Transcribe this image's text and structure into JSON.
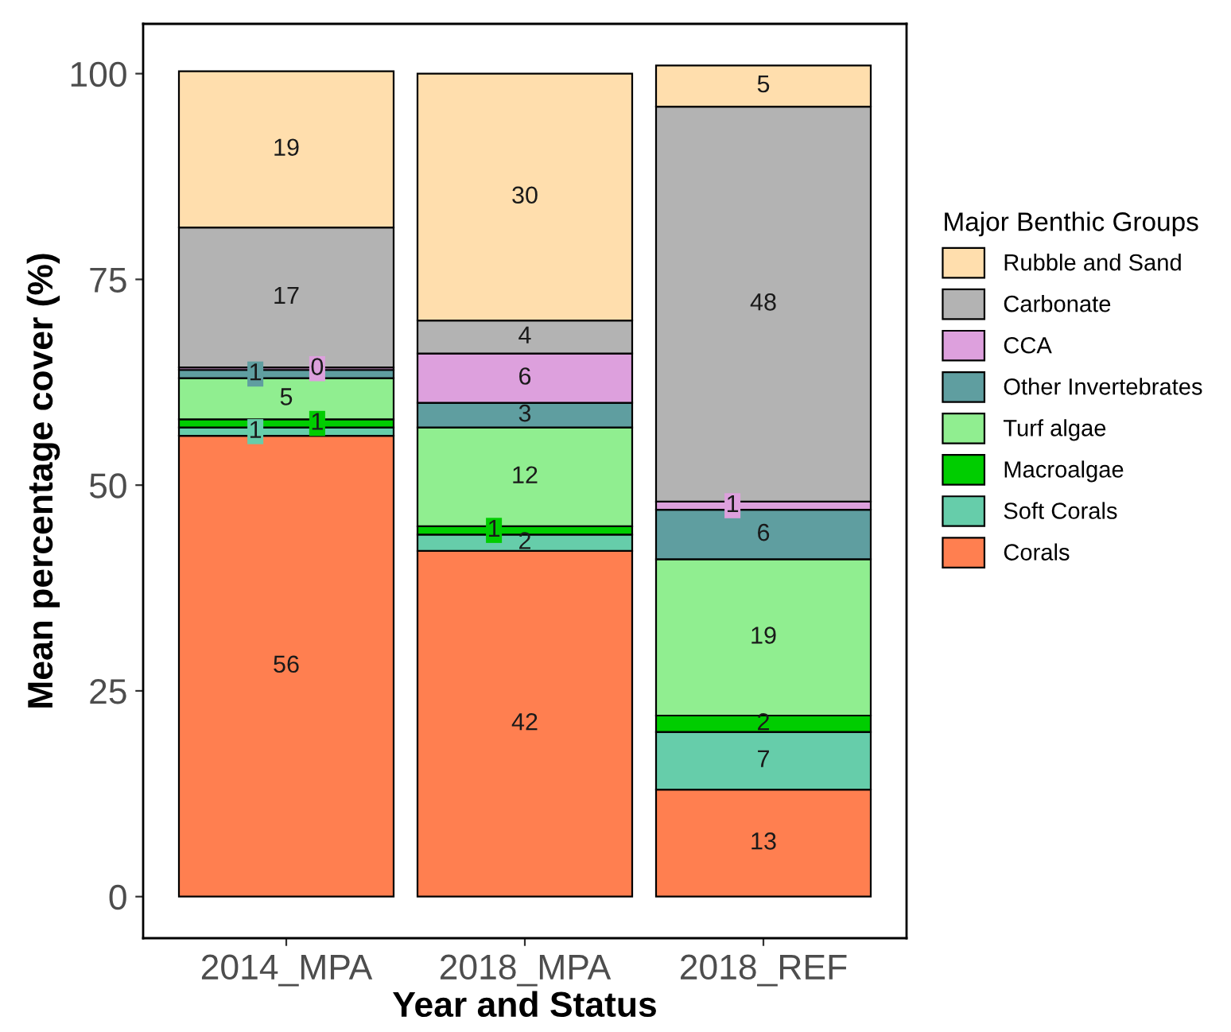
{
  "chart_data": {
    "type": "bar",
    "stacked": true,
    "xlabel": "Year and Status",
    "ylabel": "Mean percentage cover (%)",
    "legend_title": "Major Benthic Groups",
    "categories": [
      "2014_MPA",
      "2018_MPA",
      "2018_REF"
    ],
    "series": [
      {
        "name": "Corals",
        "color": "#ff7f50",
        "values": [
          56,
          42,
          13
        ],
        "value_labels": [
          "56",
          "42",
          "13"
        ]
      },
      {
        "name": "Soft Corals",
        "color": "#66cdaa",
        "values": [
          1,
          2,
          7
        ],
        "value_labels": [
          "1",
          "2",
          "7"
        ]
      },
      {
        "name": "Macroalgae",
        "color": "#00cd00",
        "values": [
          1,
          1,
          2
        ],
        "value_labels": [
          "1",
          "1",
          "2"
        ]
      },
      {
        "name": "Turf algae",
        "color": "#90ee90",
        "values": [
          5,
          12,
          19
        ],
        "value_labels": [
          "5",
          "12",
          "19"
        ]
      },
      {
        "name": "Other Invertebrates",
        "color": "#5f9ea0",
        "values": [
          1,
          3,
          6
        ],
        "value_labels": [
          "1",
          "3",
          "6"
        ]
      },
      {
        "name": "CCA",
        "color": "#dda0dd",
        "values": [
          0.3,
          6,
          1
        ],
        "value_labels": [
          "0",
          "6",
          "1"
        ]
      },
      {
        "name": "Carbonate",
        "color": "#b3b3b3",
        "values": [
          17,
          4,
          48
        ],
        "value_labels": [
          "17",
          "4",
          "48"
        ]
      },
      {
        "name": "Rubble and Sand",
        "color": "#ffdead",
        "values": [
          19,
          30,
          5
        ],
        "value_labels": [
          "19",
          "30",
          "5"
        ]
      }
    ],
    "ylim": [
      -5.05,
      106.05
    ],
    "yticks": [
      0,
      25,
      50,
      75,
      100
    ],
    "grid": false,
    "legend": "right"
  }
}
